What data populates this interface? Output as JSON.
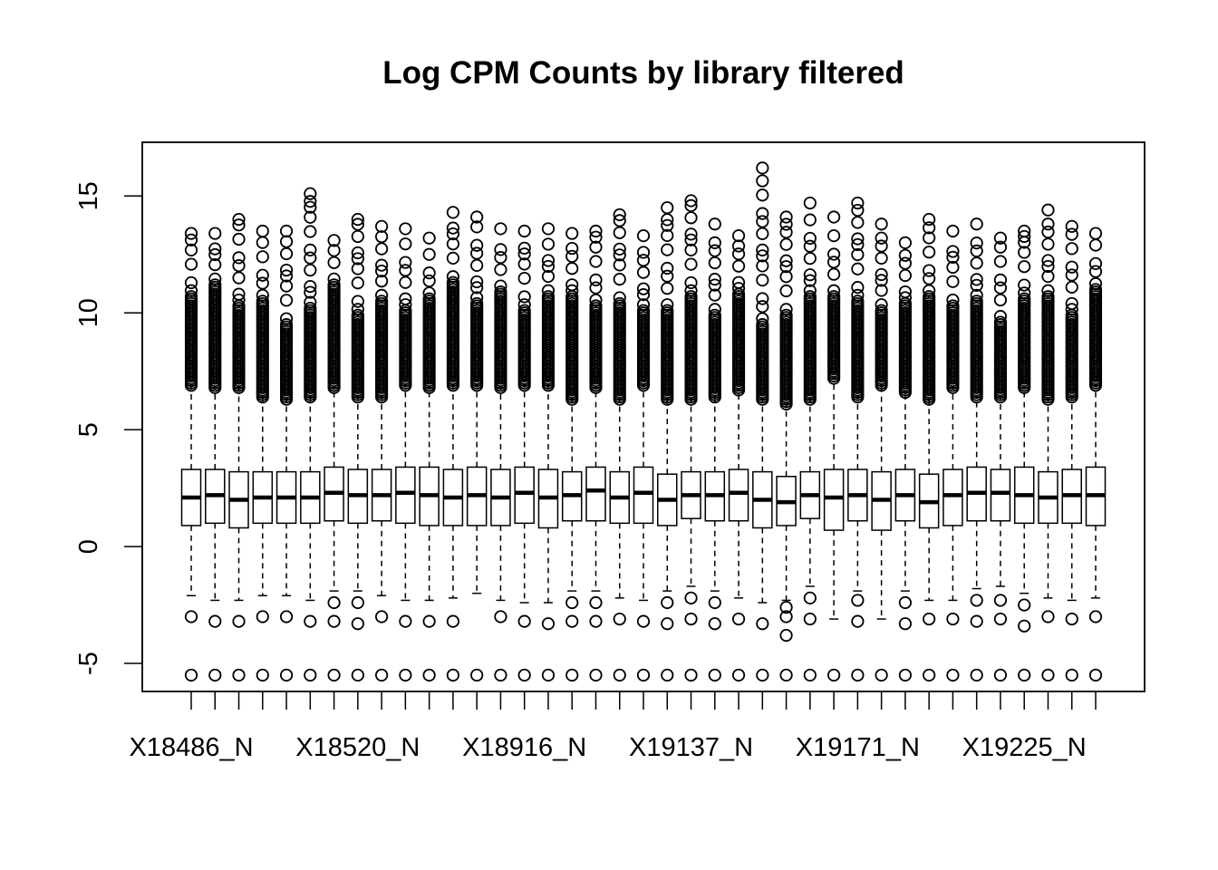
{
  "chart_data": {
    "type": "boxplot",
    "title": "Log CPM Counts by library filtered",
    "xlabel": "",
    "ylabel": "",
    "ylim": [
      -6.2,
      17.3
    ],
    "y_ticks": [
      -5,
      0,
      5,
      10,
      15
    ],
    "y_tick_labels": [
      "-5",
      "0",
      "5",
      "10",
      "15"
    ],
    "x_tick_labels": [
      {
        "index": 1,
        "label": "X18486_N"
      },
      {
        "index": 8,
        "label": "X18520_N"
      },
      {
        "index": 15,
        "label": "X18916_N"
      },
      {
        "index": 22,
        "label": "X19137_N"
      },
      {
        "index": 29,
        "label": "X19171_N"
      },
      {
        "index": 36,
        "label": "X19225_N"
      }
    ],
    "grid": false,
    "legend": "none",
    "n_boxes": 39,
    "boxes": [
      {
        "q1": 0.9,
        "median": 2.1,
        "q3": 3.3,
        "wlo": -2.1,
        "whi": 6.9,
        "out_lo": [
          -5.5,
          -3.0
        ],
        "out_hi_start": 6.9,
        "out_hi_max": 13.4
      },
      {
        "q1": 1.0,
        "median": 2.2,
        "q3": 3.3,
        "wlo": -2.3,
        "whi": 6.8,
        "out_lo": [
          -5.5,
          -3.2
        ],
        "out_hi_start": 6.8,
        "out_hi_max": 13.4
      },
      {
        "q1": 0.8,
        "median": 2.0,
        "q3": 3.2,
        "wlo": -2.3,
        "whi": 6.8,
        "out_lo": [
          -5.5,
          -3.2
        ],
        "out_hi_start": 6.8,
        "out_hi_max": 14.0
      },
      {
        "q1": 1.0,
        "median": 2.1,
        "q3": 3.2,
        "wlo": -2.1,
        "whi": 6.4,
        "out_lo": [
          -5.5,
          -3.0
        ],
        "out_hi_start": 6.4,
        "out_hi_max": 13.5
      },
      {
        "q1": 1.0,
        "median": 2.1,
        "q3": 3.2,
        "wlo": -2.1,
        "whi": 6.3,
        "out_lo": [
          -5.5,
          -3.0
        ],
        "out_hi_start": 6.3,
        "out_hi_max": 13.5
      },
      {
        "q1": 1.0,
        "median": 2.1,
        "q3": 3.2,
        "wlo": -2.3,
        "whi": 6.4,
        "out_lo": [
          -5.5,
          -3.2
        ],
        "out_hi_start": 6.4,
        "out_hi_max": 15.1
      },
      {
        "q1": 1.1,
        "median": 2.3,
        "q3": 3.4,
        "wlo": -1.9,
        "whi": 6.8,
        "out_lo": [
          -5.5,
          -3.2,
          -2.4
        ],
        "out_hi_start": 6.8,
        "out_hi_max": 13.1
      },
      {
        "q1": 1.0,
        "median": 2.2,
        "q3": 3.3,
        "wlo": -1.9,
        "whi": 6.4,
        "out_lo": [
          -5.5,
          -3.3,
          -2.4
        ],
        "out_hi_start": 6.4,
        "out_hi_max": 14.0
      },
      {
        "q1": 1.1,
        "median": 2.2,
        "q3": 3.3,
        "wlo": -2.1,
        "whi": 6.4,
        "out_lo": [
          -5.5,
          -3.0
        ],
        "out_hi_start": 6.4,
        "out_hi_max": 13.7
      },
      {
        "q1": 1.0,
        "median": 2.3,
        "q3": 3.4,
        "wlo": -2.3,
        "whi": 6.9,
        "out_lo": [
          -5.5,
          -3.2
        ],
        "out_hi_start": 6.9,
        "out_hi_max": 13.6
      },
      {
        "q1": 0.9,
        "median": 2.2,
        "q3": 3.4,
        "wlo": -2.3,
        "whi": 6.8,
        "out_lo": [
          -5.5,
          -3.2
        ],
        "out_hi_start": 6.8,
        "out_hi_max": 13.2
      },
      {
        "q1": 0.9,
        "median": 2.1,
        "q3": 3.3,
        "wlo": -2.2,
        "whi": 6.9,
        "out_lo": [
          -5.5,
          -3.2
        ],
        "out_hi_start": 6.9,
        "out_hi_max": 14.3
      },
      {
        "q1": 0.9,
        "median": 2.2,
        "q3": 3.4,
        "wlo": -2.0,
        "whi": 6.9,
        "out_lo": [
          -5.5
        ],
        "out_hi_start": 6.9,
        "out_hi_max": 14.1
      },
      {
        "q1": 0.9,
        "median": 2.1,
        "q3": 3.3,
        "wlo": -2.3,
        "whi": 6.8,
        "out_lo": [
          -5.5,
          -3.0
        ],
        "out_hi_start": 6.8,
        "out_hi_max": 13.6
      },
      {
        "q1": 1.0,
        "median": 2.3,
        "q3": 3.4,
        "wlo": -2.4,
        "whi": 6.9,
        "out_lo": [
          -5.5,
          -3.2
        ],
        "out_hi_start": 6.9,
        "out_hi_max": 13.5
      },
      {
        "q1": 0.8,
        "median": 2.1,
        "q3": 3.3,
        "wlo": -2.4,
        "whi": 6.9,
        "out_lo": [
          -5.5,
          -3.3
        ],
        "out_hi_start": 6.9,
        "out_hi_max": 13.6
      },
      {
        "q1": 1.1,
        "median": 2.2,
        "q3": 3.2,
        "wlo": -1.9,
        "whi": 6.3,
        "out_lo": [
          -5.5,
          -3.2,
          -2.4
        ],
        "out_hi_start": 6.3,
        "out_hi_max": 13.4
      },
      {
        "q1": 1.1,
        "median": 2.4,
        "q3": 3.4,
        "wlo": -1.9,
        "whi": 6.8,
        "out_lo": [
          -5.5,
          -3.2,
          -2.4
        ],
        "out_hi_start": 6.8,
        "out_hi_max": 13.5
      },
      {
        "q1": 1.0,
        "median": 2.1,
        "q3": 3.2,
        "wlo": -2.2,
        "whi": 6.3,
        "out_lo": [
          -5.5,
          -3.1
        ],
        "out_hi_start": 6.3,
        "out_hi_max": 14.2
      },
      {
        "q1": 1.0,
        "median": 2.3,
        "q3": 3.4,
        "wlo": -2.3,
        "whi": 6.9,
        "out_lo": [
          -5.5,
          -3.2
        ],
        "out_hi_start": 6.9,
        "out_hi_max": 13.3
      },
      {
        "q1": 0.9,
        "median": 2.0,
        "q3": 3.1,
        "wlo": -1.9,
        "whi": 6.3,
        "out_lo": [
          -5.5,
          -3.3,
          -2.4
        ],
        "out_hi_start": 6.3,
        "out_hi_max": 14.5
      },
      {
        "q1": 1.2,
        "median": 2.2,
        "q3": 3.2,
        "wlo": -1.7,
        "whi": 6.3,
        "out_lo": [
          -5.5,
          -3.1,
          -2.2
        ],
        "out_hi_start": 6.3,
        "out_hi_max": 14.8
      },
      {
        "q1": 1.1,
        "median": 2.2,
        "q3": 3.2,
        "wlo": -1.9,
        "whi": 6.4,
        "out_lo": [
          -5.5,
          -3.3,
          -2.4
        ],
        "out_hi_start": 6.4,
        "out_hi_max": 13.8
      },
      {
        "q1": 1.1,
        "median": 2.3,
        "q3": 3.3,
        "wlo": -2.2,
        "whi": 6.7,
        "out_lo": [
          -5.5,
          -3.1
        ],
        "out_hi_start": 6.7,
        "out_hi_max": 13.3
      },
      {
        "q1": 0.8,
        "median": 2.0,
        "q3": 3.2,
        "wlo": -2.4,
        "whi": 6.3,
        "out_lo": [
          -5.5,
          -3.3
        ],
        "out_hi_start": 6.3,
        "out_hi_max": 16.2
      },
      {
        "q1": 0.9,
        "median": 1.9,
        "q3": 3.0,
        "wlo": -2.3,
        "whi": 6.1,
        "out_lo": [
          -5.5,
          -3.8,
          -3.0,
          -2.6
        ],
        "out_hi_start": 6.1,
        "out_hi_max": 14.1
      },
      {
        "q1": 1.2,
        "median": 2.2,
        "q3": 3.2,
        "wlo": -1.7,
        "whi": 6.3,
        "out_lo": [
          -5.5,
          -3.1,
          -2.2
        ],
        "out_hi_start": 6.3,
        "out_hi_max": 14.7
      },
      {
        "q1": 0.7,
        "median": 2.1,
        "q3": 3.3,
        "wlo": -3.1,
        "whi": 7.2,
        "out_lo": [
          -5.5
        ],
        "out_hi_start": 7.2,
        "out_hi_max": 14.1
      },
      {
        "q1": 1.1,
        "median": 2.2,
        "q3": 3.3,
        "wlo": -1.9,
        "whi": 6.4,
        "out_lo": [
          -5.5,
          -3.2,
          -2.3
        ],
        "out_hi_start": 6.4,
        "out_hi_max": 14.7
      },
      {
        "q1": 0.7,
        "median": 2.0,
        "q3": 3.2,
        "wlo": -3.1,
        "whi": 6.9,
        "out_lo": [
          -5.5
        ],
        "out_hi_start": 6.9,
        "out_hi_max": 13.8
      },
      {
        "q1": 1.1,
        "median": 2.2,
        "q3": 3.3,
        "wlo": -1.9,
        "whi": 6.6,
        "out_lo": [
          -5.5,
          -3.3,
          -2.4
        ],
        "out_hi_start": 6.6,
        "out_hi_max": 13.0
      },
      {
        "q1": 0.8,
        "median": 1.9,
        "q3": 3.1,
        "wlo": -2.3,
        "whi": 6.3,
        "out_lo": [
          -5.5,
          -3.1
        ],
        "out_hi_start": 6.3,
        "out_hi_max": 14.0
      },
      {
        "q1": 0.9,
        "median": 2.2,
        "q3": 3.3,
        "wlo": -2.3,
        "whi": 6.8,
        "out_lo": [
          -5.5,
          -3.1
        ],
        "out_hi_start": 6.8,
        "out_hi_max": 13.5
      },
      {
        "q1": 1.1,
        "median": 2.3,
        "q3": 3.4,
        "wlo": -1.8,
        "whi": 6.4,
        "out_lo": [
          -5.5,
          -3.2,
          -2.3
        ],
        "out_hi_start": 6.4,
        "out_hi_max": 13.8
      },
      {
        "q1": 1.1,
        "median": 2.3,
        "q3": 3.3,
        "wlo": -1.7,
        "whi": 6.4,
        "out_lo": [
          -5.5,
          -3.1,
          -2.3
        ],
        "out_hi_start": 6.4,
        "out_hi_max": 13.2
      },
      {
        "q1": 1.0,
        "median": 2.2,
        "q3": 3.4,
        "wlo": -2.0,
        "whi": 6.8,
        "out_lo": [
          -5.5,
          -3.4,
          -2.5
        ],
        "out_hi_start": 6.8,
        "out_hi_max": 13.5
      },
      {
        "q1": 1.0,
        "median": 2.1,
        "q3": 3.2,
        "wlo": -2.2,
        "whi": 6.3,
        "out_lo": [
          -5.5,
          -3.0
        ],
        "out_hi_start": 6.3,
        "out_hi_max": 14.4
      },
      {
        "q1": 1.0,
        "median": 2.2,
        "q3": 3.3,
        "wlo": -2.3,
        "whi": 6.4,
        "out_lo": [
          -5.5,
          -3.1
        ],
        "out_hi_start": 6.4,
        "out_hi_max": 13.7
      },
      {
        "q1": 0.9,
        "median": 2.2,
        "q3": 3.4,
        "wlo": -2.2,
        "whi": 6.9,
        "out_lo": [
          -5.5,
          -3.0
        ],
        "out_hi_start": 6.9,
        "out_hi_max": 13.4
      }
    ]
  }
}
